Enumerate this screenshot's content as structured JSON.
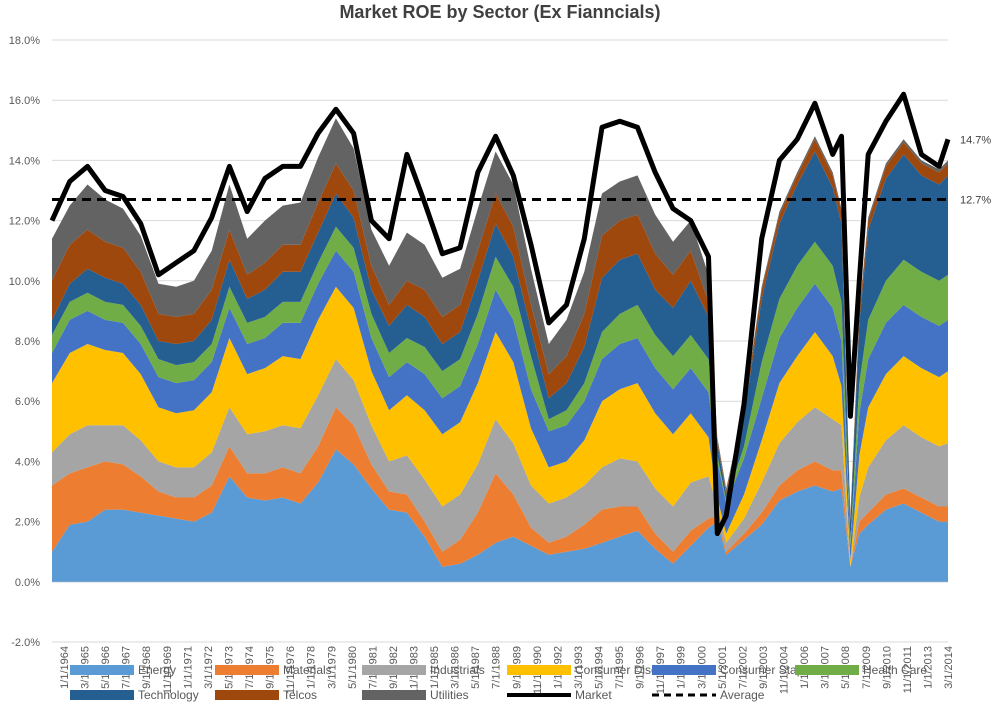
{
  "chart_data": {
    "type": "area",
    "title": "Market ROE by Sector (Ex Fianncials)",
    "y_tick_labels": [
      "18.0%",
      "16.0%",
      "14.0%",
      "12.0%",
      "10.0%",
      "8.0%",
      "6.0%",
      "4.0%",
      "2.0%",
      "0.0%",
      "-2.0%"
    ],
    "y_ticks": [
      18,
      16,
      14,
      12,
      10,
      8,
      6,
      4,
      2,
      0,
      -2
    ],
    "ylim": [
      -2,
      18
    ],
    "y_unit": "%",
    "x_tick_labels": [
      "1/1/1964",
      "3/1/1965",
      "5/1/1966",
      "7/1/1967",
      "9/1/1968",
      "11/1/1969",
      "1/1/1971",
      "3/1/1972",
      "5/1/1973",
      "7/1/1974",
      "9/1/1975",
      "11/1/1976",
      "1/1/1978",
      "3/1/1979",
      "5/1/1980",
      "7/1/1981",
      "9/1/1982",
      "11/1/1983",
      "1/1/1985",
      "3/1/1986",
      "5/1/1987",
      "7/1/1988",
      "9/1/1989",
      "11/1/1990",
      "1/1/1992",
      "3/1/1993",
      "5/1/1994",
      "7/1/1995",
      "9/1/1996",
      "11/1/1997",
      "1/1/1999",
      "3/1/2000",
      "5/1/2001",
      "7/1/2002",
      "9/1/2003",
      "11/1/2004",
      "1/1/2006",
      "3/1/2007",
      "5/1/2008",
      "7/1/2009",
      "9/1/2010",
      "11/1/2011",
      "1/1/2013",
      "3/1/2014"
    ],
    "xlim": [
      1964.0,
      2014.5
    ],
    "grid": "horizontal",
    "legend_position": "bottom",
    "stack_order": [
      "Energy",
      "Materials",
      "Industrials",
      "Consumer Disc.",
      "Consumer Staples",
      "Health Care",
      "Technology",
      "Telcos",
      "Utilities"
    ],
    "x_year": [
      1964.0,
      1965.0,
      1966.0,
      1967.0,
      1968.0,
      1969.0,
      1970.0,
      1971.0,
      1972.0,
      1973.0,
      1974.0,
      1975.0,
      1976.0,
      1977.0,
      1978.0,
      1979.0,
      1980.0,
      1981.0,
      1982.0,
      1983.0,
      1984.0,
      1985.0,
      1986.0,
      1987.0,
      1988.0,
      1989.0,
      1990.0,
      1991.0,
      1992.0,
      1993.0,
      1994.0,
      1995.0,
      1996.0,
      1997.0,
      1998.0,
      1999.0,
      2000.0,
      2001.0,
      2001.5,
      2002.0,
      2003.0,
      2004.0,
      2005.0,
      2006.0,
      2007.0,
      2008.0,
      2008.5,
      2009.0,
      2009.5,
      2010.0,
      2011.0,
      2012.0,
      2013.0,
      2014.0,
      2014.5
    ],
    "series": [
      {
        "name": "Energy",
        "color": "#5B9BD5",
        "values": [
          1.0,
          1.9,
          2.0,
          2.4,
          2.4,
          2.3,
          2.2,
          2.1,
          2.0,
          2.3,
          3.5,
          2.8,
          2.7,
          2.8,
          2.6,
          3.3,
          4.4,
          3.9,
          3.1,
          2.4,
          2.3,
          1.5,
          0.5,
          0.6,
          0.9,
          1.3,
          1.5,
          1.2,
          0.9,
          1.0,
          1.1,
          1.3,
          1.5,
          1.7,
          1.1,
          0.6,
          1.2,
          1.8,
          2.0,
          0.9,
          1.4,
          1.9,
          2.7,
          3.0,
          3.2,
          3.0,
          3.1,
          0.5,
          1.6,
          1.9,
          2.4,
          2.6,
          2.3,
          2.0,
          2.0
        ]
      },
      {
        "name": "Materials",
        "color": "#ED7D31",
        "values": [
          2.2,
          1.7,
          1.8,
          1.6,
          1.5,
          1.2,
          0.8,
          0.7,
          0.8,
          0.9,
          1.0,
          0.8,
          0.9,
          1.0,
          1.0,
          1.2,
          1.4,
          1.3,
          0.8,
          0.6,
          0.6,
          0.5,
          0.5,
          0.8,
          1.4,
          2.3,
          1.4,
          0.6,
          0.4,
          0.5,
          0.8,
          1.1,
          1.0,
          0.8,
          0.5,
          0.4,
          0.5,
          0.3,
          0.2,
          0.1,
          0.2,
          0.4,
          0.5,
          0.7,
          0.8,
          0.7,
          0.6,
          0.0,
          0.4,
          0.4,
          0.5,
          0.5,
          0.5,
          0.5,
          0.5
        ]
      },
      {
        "name": "Industrials",
        "color": "#A5A5A5",
        "values": [
          1.1,
          1.3,
          1.4,
          1.2,
          1.3,
          1.2,
          1.0,
          1.0,
          1.0,
          1.1,
          1.3,
          1.3,
          1.4,
          1.4,
          1.5,
          1.7,
          1.6,
          1.5,
          1.3,
          1.0,
          1.3,
          1.4,
          1.5,
          1.5,
          1.6,
          1.8,
          1.7,
          1.4,
          1.3,
          1.3,
          1.3,
          1.4,
          1.6,
          1.5,
          1.5,
          1.5,
          1.6,
          1.4,
          0.3,
          0.3,
          0.5,
          1.0,
          1.4,
          1.6,
          1.8,
          1.7,
          1.5,
          0.0,
          0.8,
          1.5,
          1.8,
          2.1,
          2.0,
          2.0,
          2.1
        ]
      },
      {
        "name": "Consumer Disc.",
        "color": "#FFC000",
        "values": [
          2.3,
          2.7,
          2.7,
          2.5,
          2.4,
          2.2,
          1.8,
          1.8,
          1.9,
          2.0,
          2.3,
          2.0,
          2.1,
          2.3,
          2.3,
          2.5,
          2.4,
          2.4,
          1.8,
          1.7,
          2.0,
          2.3,
          2.4,
          2.4,
          2.7,
          2.9,
          2.7,
          1.9,
          1.2,
          1.2,
          1.5,
          2.2,
          2.3,
          2.6,
          2.5,
          2.4,
          2.3,
          1.3,
          0.3,
          0.3,
          0.8,
          1.4,
          2.0,
          2.2,
          2.5,
          2.1,
          1.3,
          0.2,
          1.4,
          2.0,
          2.2,
          2.3,
          2.3,
          2.3,
          2.4
        ]
      },
      {
        "name": "Consumer Staples",
        "color": "#4472C4",
        "values": [
          1.0,
          1.1,
          1.1,
          1.0,
          1.0,
          1.0,
          1.0,
          1.0,
          1.0,
          1.0,
          1.0,
          1.0,
          1.0,
          1.1,
          1.2,
          1.2,
          1.2,
          1.2,
          1.1,
          1.1,
          1.1,
          1.2,
          1.2,
          1.2,
          1.3,
          1.4,
          1.4,
          1.3,
          1.2,
          1.2,
          1.3,
          1.4,
          1.5,
          1.5,
          1.5,
          1.5,
          1.5,
          1.5,
          1.2,
          1.0,
          1.2,
          1.4,
          1.5,
          1.6,
          1.6,
          1.6,
          1.5,
          0.5,
          1.4,
          1.6,
          1.7,
          1.7,
          1.7,
          1.7,
          1.7
        ]
      },
      {
        "name": "Health Care",
        "color": "#70AD47",
        "values": [
          0.6,
          0.6,
          0.6,
          0.6,
          0.6,
          0.6,
          0.6,
          0.6,
          0.6,
          0.6,
          0.7,
          0.7,
          0.7,
          0.7,
          0.7,
          0.7,
          0.8,
          0.8,
          0.8,
          0.8,
          0.8,
          0.9,
          0.9,
          0.9,
          1.0,
          1.1,
          1.1,
          1.1,
          0.4,
          0.5,
          0.6,
          0.9,
          1.0,
          1.1,
          1.1,
          1.1,
          1.1,
          1.1,
          0.2,
          0.1,
          0.4,
          1.2,
          1.3,
          1.4,
          1.4,
          1.4,
          1.3,
          0.2,
          1.0,
          1.3,
          1.4,
          1.5,
          1.5,
          1.5,
          1.5
        ]
      },
      {
        "name": "Technology",
        "color": "#255E91",
        "values": [
          0.5,
          0.6,
          0.8,
          0.8,
          0.7,
          0.7,
          0.6,
          0.7,
          0.7,
          0.8,
          0.9,
          0.8,
          0.9,
          1.0,
          1.0,
          1.0,
          1.1,
          1.0,
          0.8,
          0.9,
          1.1,
          1.0,
          0.9,
          0.9,
          1.1,
          1.1,
          1.0,
          0.9,
          0.7,
          0.9,
          1.2,
          1.8,
          1.8,
          1.7,
          1.5,
          1.6,
          1.8,
          1.4,
          0.4,
          0.2,
          1.0,
          2.1,
          2.5,
          2.7,
          3.0,
          2.6,
          2.6,
          0.6,
          2.0,
          3.0,
          3.4,
          3.5,
          3.2,
          3.2,
          3.3
        ]
      },
      {
        "name": "Telcos",
        "color": "#9E480E",
        "values": [
          1.3,
          1.3,
          1.3,
          1.2,
          1.2,
          1.1,
          0.9,
          0.9,
          0.9,
          1.0,
          1.0,
          0.8,
          0.9,
          0.9,
          0.9,
          1.0,
          1.0,
          0.9,
          0.8,
          0.7,
          0.8,
          0.9,
          0.9,
          0.9,
          1.0,
          1.0,
          1.0,
          0.8,
          0.8,
          0.9,
          1.1,
          1.4,
          1.3,
          1.3,
          1.2,
          1.1,
          1.0,
          0.5,
          0.1,
          0.1,
          0.2,
          0.3,
          0.3,
          0.3,
          0.4,
          0.4,
          0.4,
          0.1,
          0.3,
          0.3,
          0.4,
          0.4,
          0.4,
          0.4,
          0.4
        ]
      },
      {
        "name": "Utilities",
        "color": "#636363",
        "values": [
          1.4,
          1.3,
          1.5,
          1.4,
          1.3,
          1.2,
          1.0,
          1.0,
          1.1,
          1.3,
          1.5,
          1.2,
          1.4,
          1.3,
          1.4,
          1.5,
          1.5,
          1.4,
          1.2,
          1.3,
          1.6,
          1.5,
          1.3,
          1.2,
          1.4,
          1.4,
          1.4,
          1.2,
          1.0,
          1.2,
          1.4,
          1.4,
          1.3,
          1.3,
          1.3,
          1.1,
          1.0,
          0.9,
          0.1,
          0.1,
          0.1,
          0.1,
          0.1,
          0.1,
          0.1,
          0.1,
          0.1,
          0.1,
          0.1,
          0.1,
          0.1,
          0.1,
          0.1,
          0.1,
          0.1
        ]
      }
    ],
    "market": {
      "name": "Market",
      "color": "#000000",
      "values": [
        12.0,
        13.3,
        13.8,
        13.0,
        12.8,
        11.9,
        10.2,
        10.6,
        11.0,
        12.1,
        13.8,
        12.3,
        13.4,
        13.8,
        13.8,
        14.9,
        15.7,
        14.9,
        12.0,
        11.4,
        14.2,
        12.6,
        10.9,
        11.1,
        13.6,
        14.8,
        13.5,
        11.2,
        8.6,
        9.2,
        11.4,
        15.1,
        15.3,
        15.1,
        13.6,
        12.4,
        12.0,
        10.8,
        1.6,
        2.2,
        5.9,
        11.4,
        14.0,
        14.7,
        15.9,
        14.2,
        14.8,
        5.5,
        10.0,
        14.2,
        15.3,
        16.2,
        14.2,
        13.8,
        14.7
      ]
    },
    "average": {
      "name": "Average",
      "color": "#000000",
      "value": 12.7
    },
    "end_labels": [
      "14.7%",
      "12.7%"
    ],
    "legend": [
      "Energy",
      "Materials",
      "Industrials",
      "Consumer Disc.",
      "Consumer Staples",
      "Health Care",
      "Technology",
      "Telcos",
      "Utilities",
      "Market",
      "Average"
    ]
  }
}
